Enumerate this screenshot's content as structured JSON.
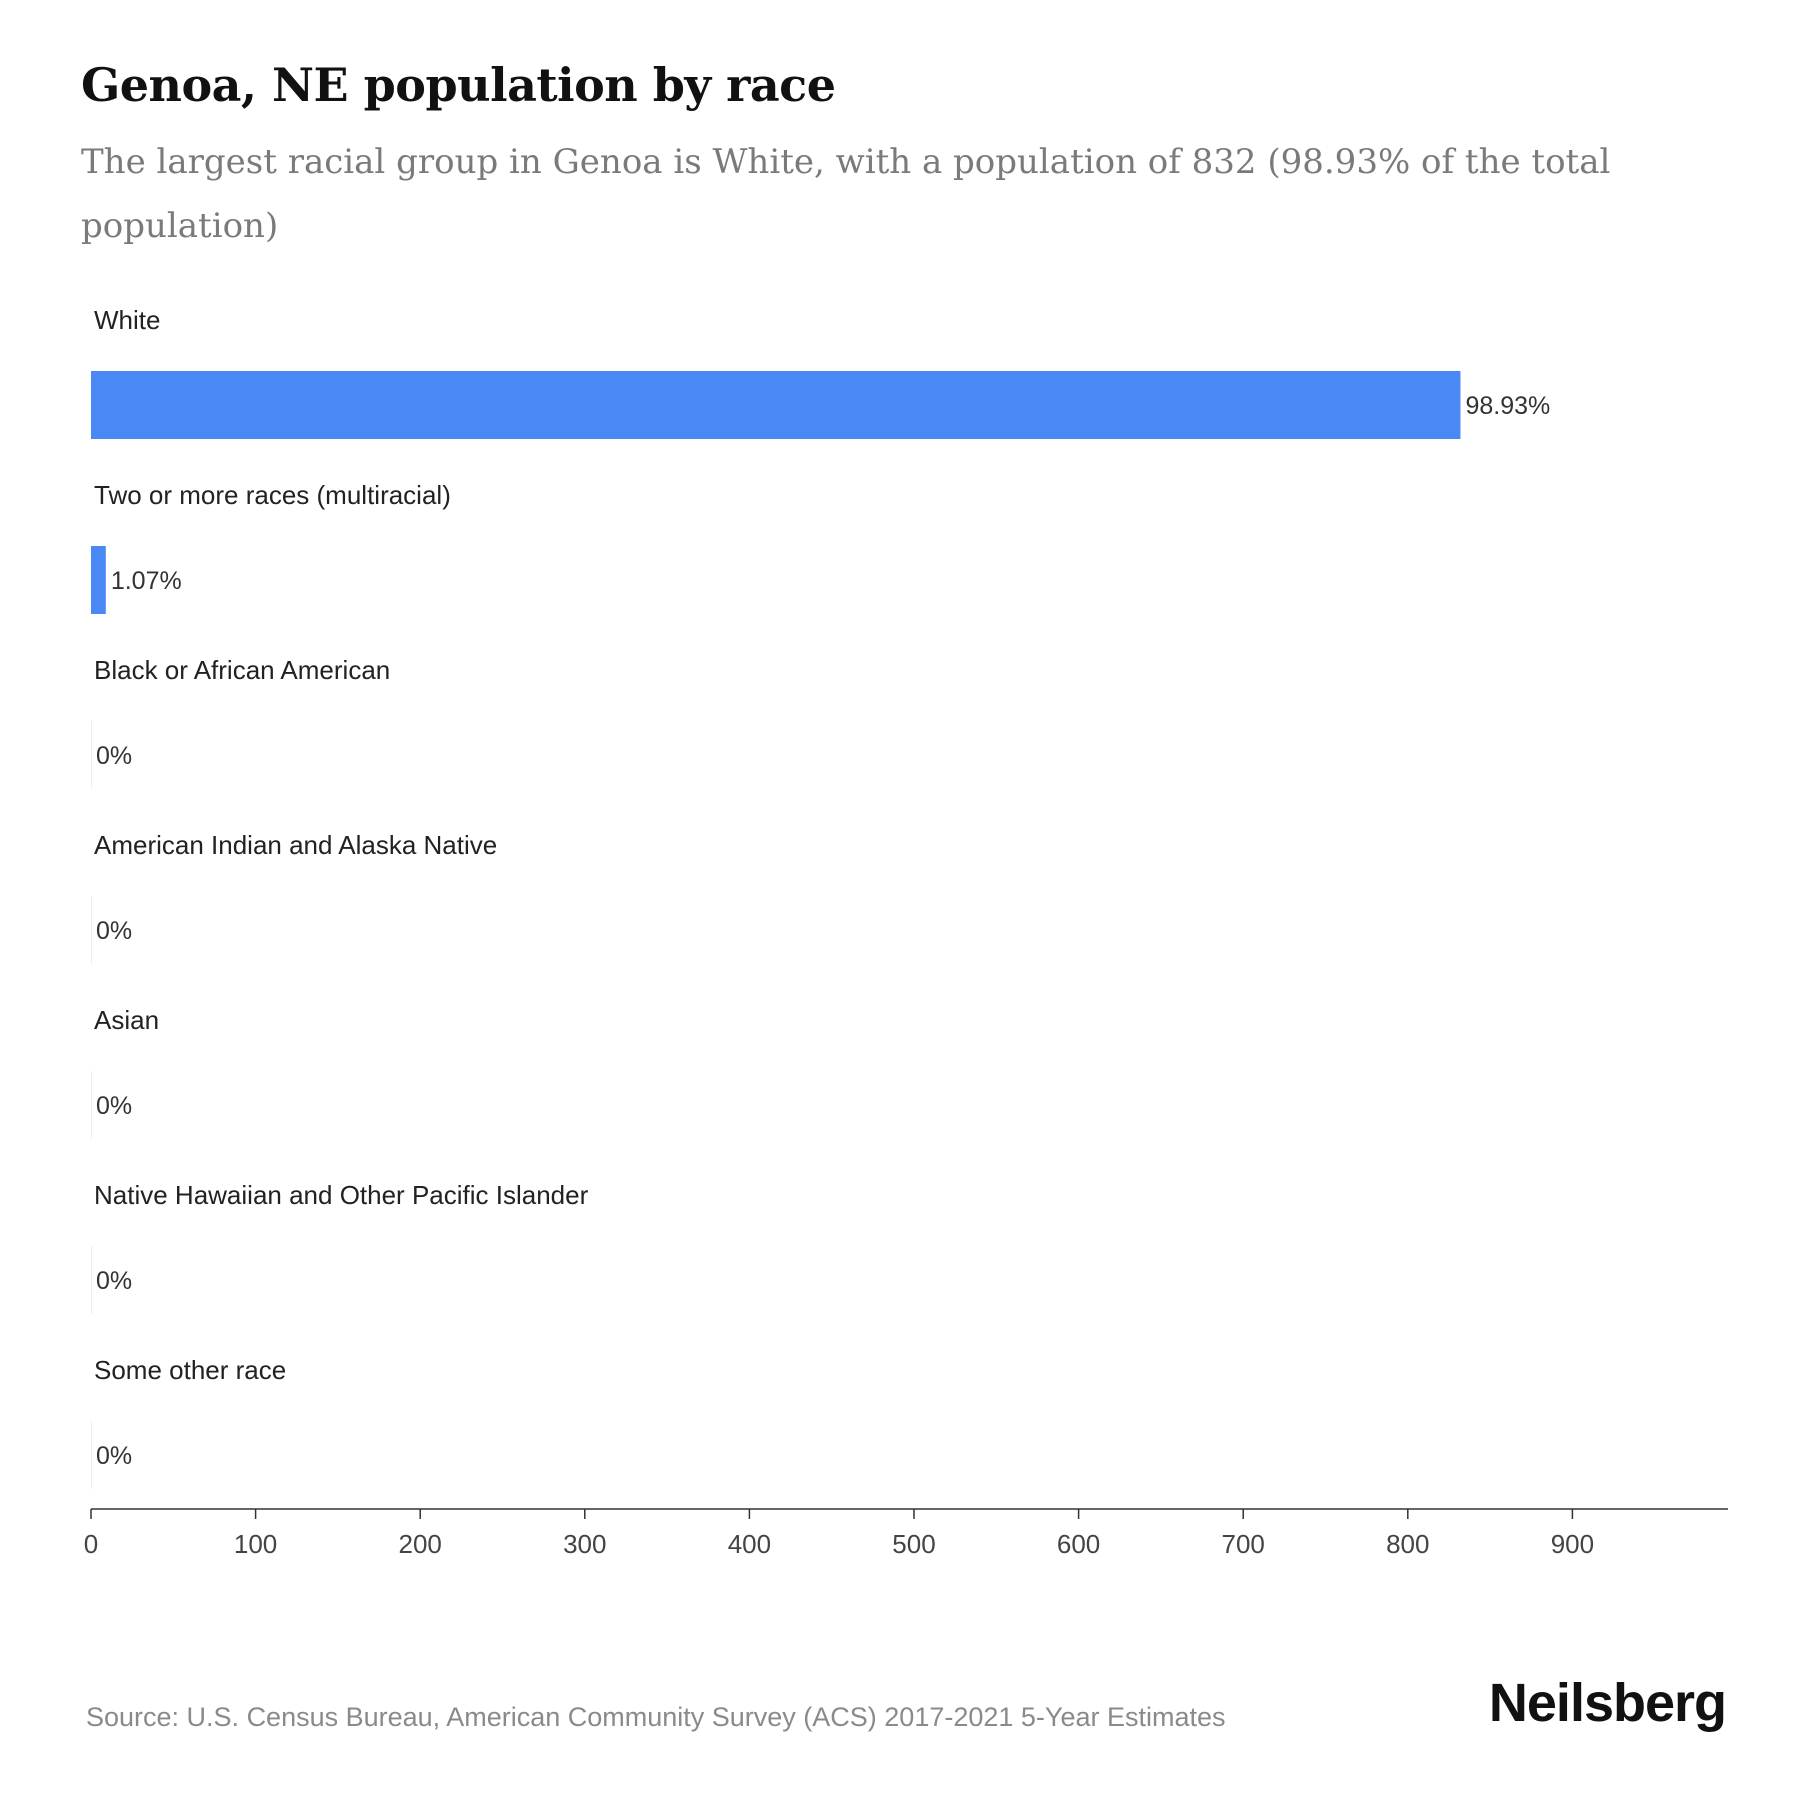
{
  "header": {
    "title": "Genoa, NE population by race",
    "subtitle": "The largest racial group in Genoa is White, with a population of 832 (98.93% of the total population)"
  },
  "footer": {
    "source": "Source: U.S. Census Bureau, American Community Survey (ACS) 2017-2021 5-Year Estimates",
    "brand": "Neilsberg"
  },
  "colors": {
    "bar": "#4a89f3",
    "axis": "#333333"
  },
  "chart_data": {
    "type": "bar",
    "orientation": "horizontal",
    "categories": [
      "White",
      "Two or more races (multiracial)",
      "Black or African American",
      "American Indian and Alaska Native",
      "Asian",
      "Native Hawaiian and Other Pacific Islander",
      "Some other race"
    ],
    "values": [
      832,
      9,
      0,
      0,
      0,
      0,
      0
    ],
    "value_labels": [
      "98.93%",
      "1.07%",
      "0%",
      "0%",
      "0%",
      "0%",
      "0%"
    ],
    "xlim": [
      0,
      1000
    ],
    "x_ticks": [
      0,
      100,
      200,
      300,
      400,
      500,
      600,
      700,
      800,
      900
    ],
    "grid": false,
    "legend": "none"
  }
}
